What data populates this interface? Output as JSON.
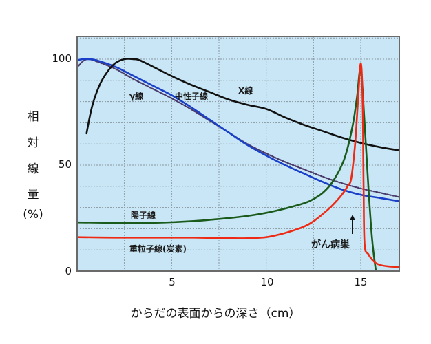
{
  "chart_data": {
    "type": "line",
    "title": "",
    "xlabel": "からだの表面からの深さ（cm）",
    "ylabel": "相対線量(%)",
    "ylabel_chars": [
      "相",
      "対",
      "線",
      "量",
      "(%)"
    ],
    "xlim": [
      0,
      17
    ],
    "ylim": [
      0,
      100
    ],
    "x_ticks": [
      {
        "value": 5,
        "label": "5"
      },
      {
        "value": 10,
        "label": "10"
      },
      {
        "value": 15,
        "label": "15"
      }
    ],
    "y_ticks": [
      {
        "value": 0,
        "label": "0"
      },
      {
        "value": 50,
        "label": "50"
      },
      {
        "value": 100,
        "label": "100"
      }
    ],
    "grid": {
      "x_step": 2.5,
      "y_step": 10,
      "style": "dotted"
    },
    "background_color": "#c8e6f5",
    "series": [
      {
        "name": "X線",
        "color": "#111111",
        "style": "solid",
        "x": [
          0.5,
          0.8,
          1.2,
          1.6,
          2.0,
          2.5,
          3.0,
          3.3,
          4.0,
          5.0,
          6.0,
          7.0,
          8.0,
          9.0,
          10.0,
          11.0,
          12.0,
          13.0,
          14.0,
          15.0,
          16.0,
          17.0
        ],
        "y": [
          65,
          78,
          88,
          94,
          98,
          100,
          100,
          99.5,
          96.5,
          92,
          88,
          84.5,
          81,
          78.5,
          76.5,
          72.5,
          69,
          66,
          63,
          60.5,
          58.5,
          57
        ]
      },
      {
        "name": "中性子線",
        "color": "#1a3fc8",
        "style": "solid",
        "x": [
          0,
          0.3,
          0.6,
          1.0,
          2.0,
          3.0,
          4.0,
          5.0,
          6.0,
          7.0,
          8.0,
          9.0,
          10.0,
          11.0,
          12.0,
          13.0,
          14.0,
          15.0,
          16.0,
          17.0
        ],
        "y": [
          99.5,
          100,
          100,
          99.5,
          96.5,
          92,
          87.5,
          83,
          77.5,
          71.5,
          65.5,
          59.5,
          54.5,
          50,
          46,
          42,
          38.5,
          36,
          34.5,
          33
        ]
      },
      {
        "name": "γ線",
        "color": "#4a3a6a",
        "style": "dotted",
        "x": [
          0,
          0.3,
          0.6,
          1.0,
          2.0,
          3.0,
          4.0,
          5.0,
          6.0,
          7.0,
          8.0,
          9.0,
          10.0,
          11.0,
          12.0,
          13.0,
          14.0,
          15.0,
          16.0,
          17.0
        ],
        "y": [
          96,
          99,
          100,
          99,
          95.5,
          90.5,
          86,
          81.5,
          76.5,
          71,
          65.5,
          60,
          55.5,
          51.5,
          48,
          44.5,
          41.5,
          39,
          37,
          35
        ]
      },
      {
        "name": "陽子線",
        "color": "#1a5a1a",
        "style": "solid",
        "x": [
          0,
          2,
          4,
          6,
          8,
          9,
          10,
          11,
          12,
          12.5,
          13,
          13.5,
          14,
          14.3,
          14.6,
          14.8,
          15.0,
          15.2,
          15.4,
          15.6,
          15.8
        ],
        "y": [
          23,
          22.8,
          22.8,
          23.5,
          25,
          26,
          27.5,
          29.5,
          32,
          34,
          37,
          42,
          50,
          58,
          70,
          82,
          95,
          70,
          40,
          15,
          0
        ]
      },
      {
        "name": "重粒子線(炭素)",
        "color": "#ee2a14",
        "style": "solid",
        "x": [
          0,
          2,
          4,
          6,
          8,
          9,
          10,
          11,
          12,
          12.5,
          13,
          13.5,
          14,
          14.3,
          14.5,
          14.7,
          14.85,
          15.0,
          15.1,
          15.15,
          15.2,
          15.4,
          15.7,
          16.0,
          16.5,
          17.0
        ],
        "y": [
          16,
          15.8,
          15.8,
          15.8,
          15.5,
          15.5,
          16,
          18,
          21,
          23.5,
          27,
          31,
          36,
          40,
          44,
          60,
          80,
          98,
          80,
          40,
          13,
          8,
          4.5,
          3,
          2.2,
          2
        ]
      }
    ],
    "annotations": [
      {
        "text": "γ線",
        "x_cm": 2.7,
        "y_pct": 84
      },
      {
        "text": "中性子線",
        "x_cm": 5.3,
        "y_pct": 84
      },
      {
        "text": "X線",
        "x_cm": 10.2,
        "y_pct": 87
      },
      {
        "text": "陽子線",
        "x_cm": 2.8,
        "y_pct": 28
      },
      {
        "text": "重粒子線(炭素)",
        "x_cm": 2.8,
        "y_pct": 12
      },
      {
        "text": "がん病巣",
        "x_cm": 12.3,
        "y_pct": 11,
        "arrow": true
      }
    ]
  }
}
